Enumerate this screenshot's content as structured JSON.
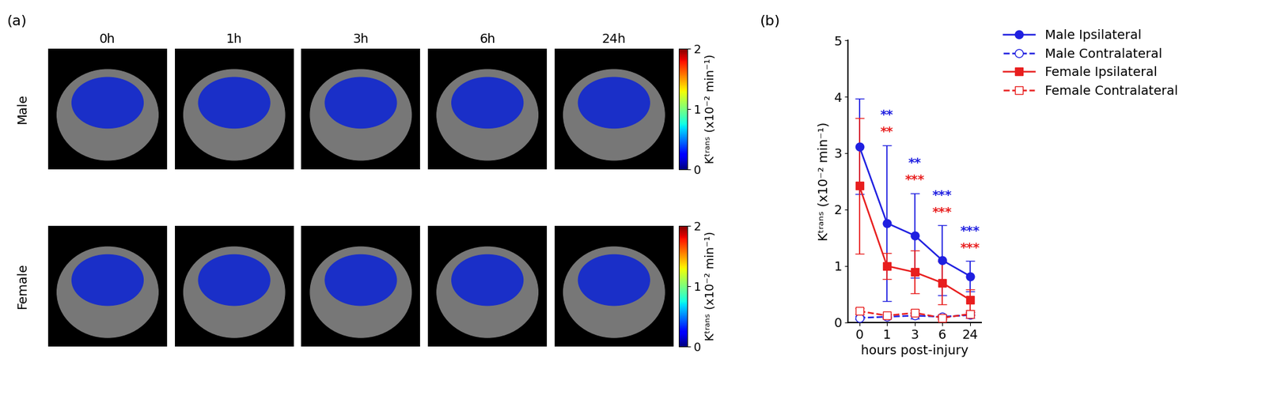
{
  "chart_data": [
    {
      "type": "image_grid",
      "panel": "(a)",
      "columns": [
        "0h",
        "1h",
        "3h",
        "6h",
        "24h"
      ],
      "rows": [
        "Male",
        "Female"
      ],
      "colorbar_label": "Kᵗʳᵃⁿˢ (x10⁻² min⁻¹)",
      "colorbar_range": [
        0,
        2
      ],
      "colorbar_ticks": [
        0,
        1,
        2
      ]
    },
    {
      "type": "line",
      "panel": "(b)",
      "categories": [
        "0",
        "1",
        "3",
        "6",
        "24"
      ],
      "x_label": "hours post-injury",
      "y_label": "Kᵗʳᵃⁿˢ (x10⁻² min⁻¹)",
      "ylim": [
        0,
        5
      ],
      "yticks": [
        0,
        1,
        2,
        3,
        4,
        5
      ],
      "legend": "right",
      "series": [
        {
          "name": "Male Ipsilateral",
          "color": "#1f1fe0",
          "marker": "circle",
          "line_style": "solid",
          "values": [
            3.12,
            1.76,
            1.54,
            1.1,
            0.82
          ],
          "errors": [
            0.85,
            1.38,
            0.75,
            0.62,
            0.27
          ],
          "significance": [
            null,
            "**",
            "**",
            "***",
            "***"
          ]
        },
        {
          "name": "Male Contralateral",
          "color": "#1f1fe0",
          "marker": "open circle",
          "line_style": "dashed",
          "values": [
            0.08,
            0.1,
            0.12,
            0.1,
            0.13
          ],
          "errors": [
            0.03,
            0.03,
            0.05,
            0.03,
            0.05
          ]
        },
        {
          "name": "Female Ipsilateral",
          "color": "#e81e1e",
          "marker": "square",
          "line_style": "solid",
          "values": [
            2.42,
            1.0,
            0.89,
            0.7,
            0.4
          ],
          "errors": [
            1.2,
            0.23,
            0.38,
            0.38,
            0.18
          ],
          "significance": [
            null,
            "**",
            "***",
            "***",
            "***"
          ]
        },
        {
          "name": "Female Contralateral",
          "color": "#e81e1e",
          "marker": "open square",
          "line_style": "dashed",
          "values": [
            0.2,
            0.12,
            0.17,
            0.08,
            0.15
          ],
          "errors": [
            0.05,
            0.03,
            0.05,
            0.03,
            0.03
          ]
        }
      ]
    }
  ]
}
